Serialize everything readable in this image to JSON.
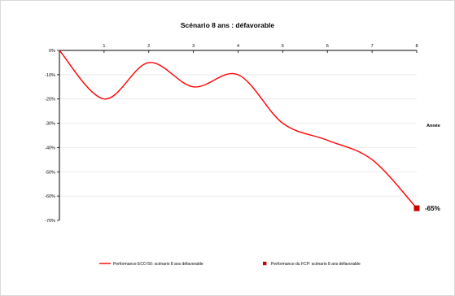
{
  "chart_data": {
    "type": "line",
    "title": "Scénario 8 ans : défavorable",
    "xlabel": "Année",
    "ylabel": "",
    "x": [
      0,
      1,
      2,
      3,
      4,
      5,
      6,
      7,
      8
    ],
    "xlim": [
      0,
      8
    ],
    "ylim": [
      -70,
      0
    ],
    "y_ticks": [
      0,
      -10,
      -20,
      -30,
      -40,
      -50,
      -60,
      -70
    ],
    "y_tick_labels": [
      "0%",
      "-10%",
      "-20%",
      "-30%",
      "-40%",
      "-50%",
      "-60%",
      "-70%"
    ],
    "x_tick_labels": [
      "1",
      "2",
      "3",
      "4",
      "5",
      "6",
      "7",
      "8"
    ],
    "grid": "horizontal",
    "legend_position": "bottom",
    "series": [
      {
        "name": "Performance ECO 50: scénario 8 ans défavorable",
        "color": "#ff0000",
        "marker": "line",
        "x": [
          0,
          1,
          2,
          3,
          4,
          5,
          6,
          7,
          8
        ],
        "values": [
          0,
          -20,
          -5,
          -15,
          -10,
          -30,
          -37,
          -45,
          -65
        ]
      },
      {
        "name": "Performance du FCP: scénario 8 ans défavorable",
        "color": "#cc0000",
        "marker": "square",
        "x": [
          8
        ],
        "values": [
          -65
        ]
      }
    ],
    "annotations": [
      {
        "text": "-65%",
        "x": 8,
        "y": -65
      }
    ]
  }
}
